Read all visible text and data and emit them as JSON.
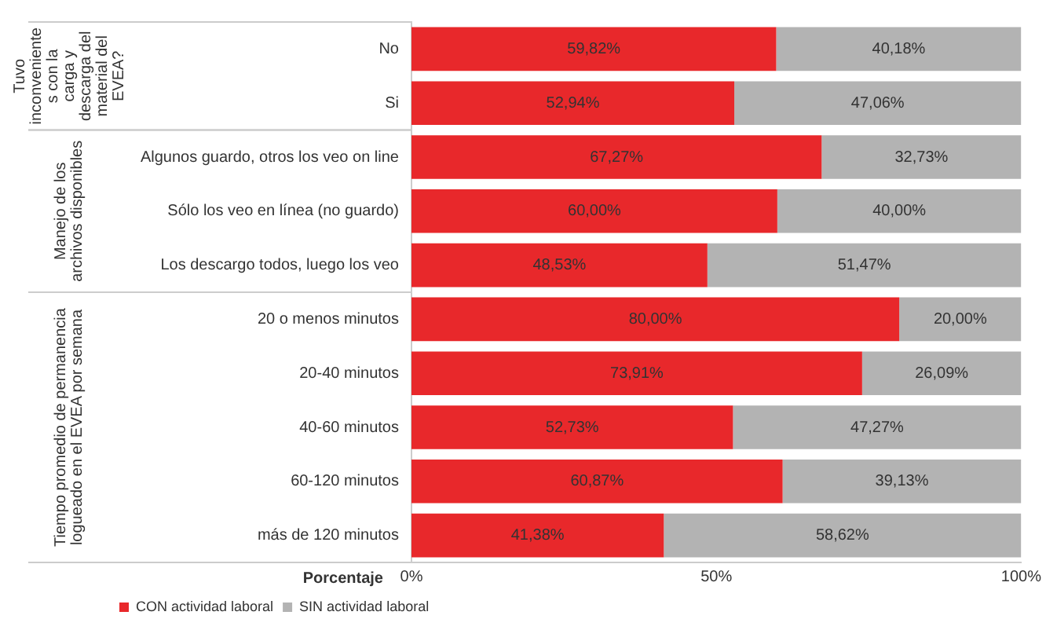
{
  "chart_data": {
    "type": "bar",
    "orientation": "horizontal",
    "stacked": true,
    "categories": [
      "No",
      "Si",
      "Algunos guardo, otros los veo on line",
      "Sólo los veo en línea (no guardo)",
      "Los descargo todos, luego los veo",
      "20 o menos minutos",
      "20-40 minutos",
      "40-60 minutos",
      "60-120 minutos",
      "más de 120 minutos"
    ],
    "series": [
      {
        "name": "CON actividad laboral",
        "color": "#e8282b",
        "values": [
          59.82,
          52.94,
          67.27,
          60.0,
          48.53,
          80.0,
          73.91,
          52.73,
          60.87,
          41.38
        ],
        "value_labels": [
          "59,82%",
          "52,94%",
          "67,27%",
          "60,00%",
          "48,53%",
          "80,00%",
          "73,91%",
          "52,73%",
          "60,87%",
          "41,38%"
        ]
      },
      {
        "name": "SIN actividad laboral",
        "color": "#b3b3b3",
        "values": [
          40.18,
          47.06,
          32.73,
          40.0,
          51.47,
          20.0,
          26.09,
          47.27,
          39.13,
          58.62
        ],
        "value_labels": [
          "40,18%",
          "47,06%",
          "32,73%",
          "40,00%",
          "51,47%",
          "20,00%",
          "26,09%",
          "47,27%",
          "39,13%",
          "58,62%"
        ]
      }
    ],
    "xlabel": "Porcentaje",
    "xlim": [
      0,
      100
    ],
    "xticks": [
      {
        "value": 0,
        "label": "0%"
      },
      {
        "value": 50,
        "label": "50%"
      },
      {
        "value": 100,
        "label": "100%"
      }
    ],
    "annotations": [
      "Tuvo inconveniente s con la carga y descarga del material del EVEA?",
      "Manejo de los archivos disponibles",
      "Tiempo promedio de permanencia logueado en el EVEA por semana"
    ],
    "grid": false,
    "legend": "bottom left"
  }
}
